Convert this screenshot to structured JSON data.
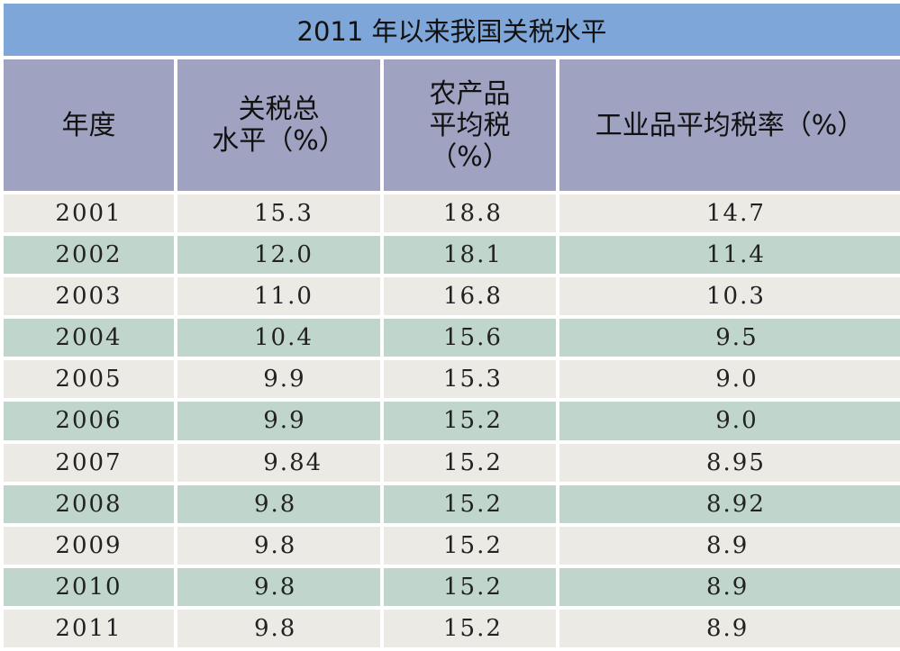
{
  "chart_data": {
    "type": "table",
    "title": "2011 年以来我国关税水平",
    "columns": [
      {
        "lines": [
          "年度"
        ]
      },
      {
        "lines": [
          "关税总",
          "水平（%）"
        ]
      },
      {
        "lines": [
          "农产品",
          "平均税",
          "（%）"
        ]
      },
      {
        "lines": [
          "工业品平均税率（%）"
        ]
      }
    ],
    "rows": [
      {
        "year": "2001",
        "total": "15.3",
        "agri": "18.8",
        "industrial": "14.7"
      },
      {
        "year": "2002",
        "total": "12.0",
        "agri": "18.1",
        "industrial": "11.4"
      },
      {
        "year": "2003",
        "total": "11.0",
        "agri": "16.8",
        "industrial": "10.3"
      },
      {
        "year": "2004",
        "total": "10.4",
        "agri": "15.6",
        "industrial": " 9.5"
      },
      {
        "year": "2005",
        "total": " 9.9",
        "agri": "15.3",
        "industrial": " 9.0"
      },
      {
        "year": "2006",
        "total": " 9.9",
        "agri": "15.2",
        "industrial": " 9.0"
      },
      {
        "year": "2007",
        "total": " 9.84",
        "agri": "15.2",
        "industrial": "8.95"
      },
      {
        "year": "2008",
        "total": "9.8",
        "agri": "15.2",
        "industrial": "8.92"
      },
      {
        "year": "2009",
        "total": "9.8",
        "agri": "15.2",
        "industrial": "8.9"
      },
      {
        "year": "2010",
        "total": "9.8",
        "agri": "15.2",
        "industrial": "8.9"
      },
      {
        "year": "2011",
        "total": "9.8",
        "agri": "15.2",
        "industrial": "8.9"
      }
    ]
  },
  "colors": {
    "title_bg": "#7ea6d9",
    "header_bg": "#9fa2c1",
    "row_light": "#ebeae5",
    "row_teal": "#c0d6cc"
  }
}
